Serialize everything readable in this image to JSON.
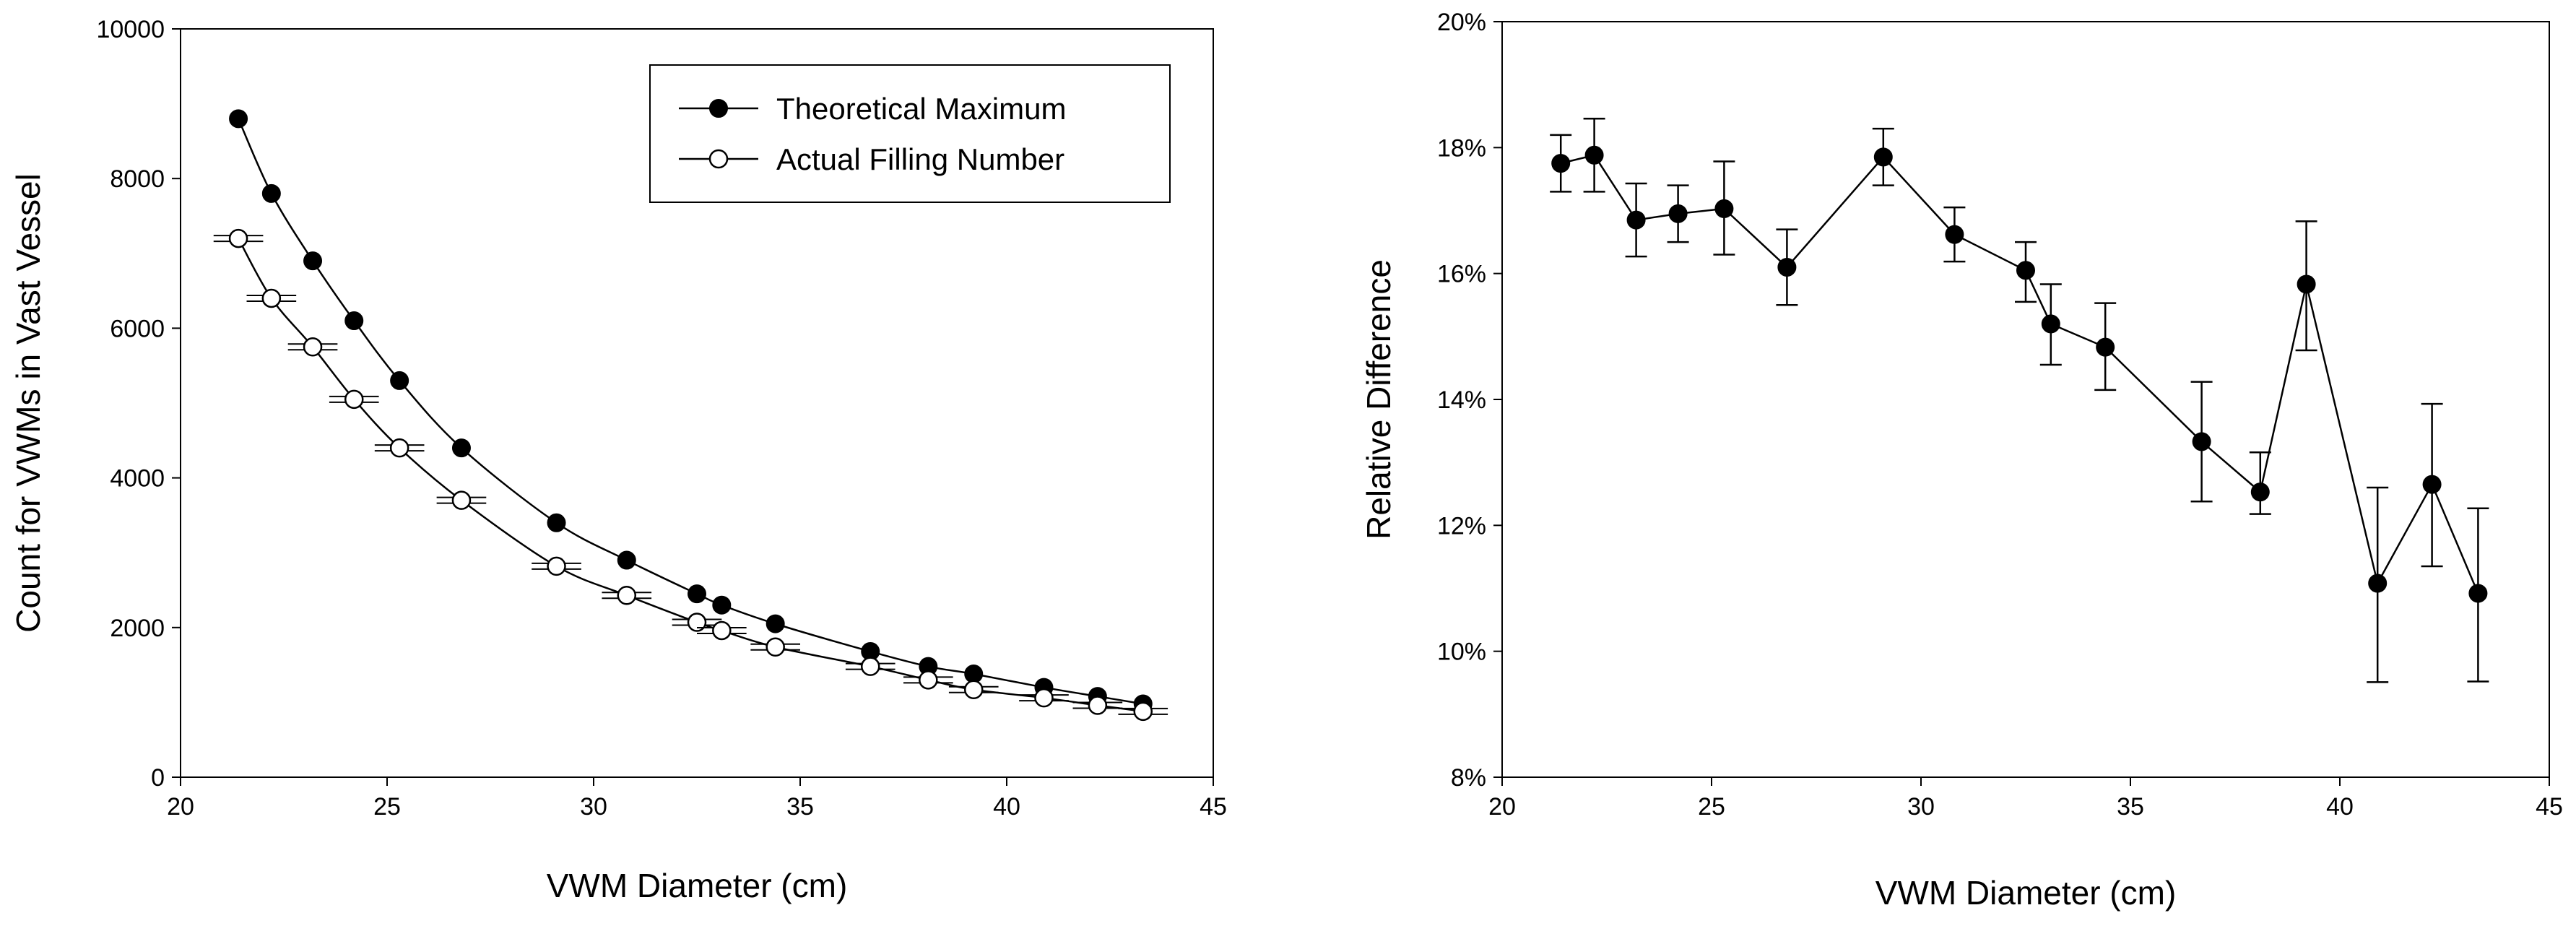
{
  "chart_data": [
    {
      "type": "scatter",
      "xlabel": "VWM Diameter  (cm)",
      "ylabel": "Count for VWMs in Vast Vessel",
      "xlim": [
        20,
        45
      ],
      "ylim": [
        0,
        10000
      ],
      "xticks": [
        20,
        25,
        30,
        35,
        40,
        45
      ],
      "yticks": [
        0,
        2000,
        4000,
        6000,
        8000,
        10000
      ],
      "xtick_labels": [
        "20",
        "25",
        "30",
        "35",
        "40",
        "45"
      ],
      "ytick_labels": [
        "0",
        "2000",
        "4000",
        "6000",
        "8000",
        "10000"
      ],
      "legend_position": "top-right",
      "series": [
        {
          "name": "Theoretical Maximum",
          "marker": "filled-circle",
          "x": [
            21.4,
            22.2,
            23.2,
            24.2,
            25.3,
            26.8,
            29.1,
            30.8,
            32.5,
            33.1,
            34.4,
            36.7,
            38.1,
            39.2,
            40.9,
            42.2,
            43.3
          ],
          "y": [
            8800,
            7800,
            6900,
            6100,
            5300,
            4400,
            3400,
            2900,
            2450,
            2300,
            2050,
            1680,
            1480,
            1380,
            1200,
            1080,
            980
          ]
        },
        {
          "name": "Actual Filling Number",
          "marker": "open-circle",
          "x": [
            21.4,
            22.2,
            23.2,
            24.2,
            25.3,
            26.8,
            29.1,
            30.8,
            32.5,
            33.1,
            34.4,
            36.7,
            38.1,
            39.2,
            40.9,
            42.2,
            43.3
          ],
          "y": [
            7200,
            6400,
            5750,
            5050,
            4400,
            3700,
            2820,
            2430,
            2070,
            1960,
            1740,
            1480,
            1300,
            1170,
            1060,
            960,
            880
          ],
          "xerr": [
            0.6,
            0.6,
            0.6,
            0.6,
            0.6,
            0.6,
            0.6,
            0.6,
            0.6,
            0.6,
            0.6,
            0.6,
            0.6,
            0.6,
            0.6,
            0.6,
            0.6
          ]
        }
      ]
    },
    {
      "type": "line",
      "xlabel": "VWM Diameter  (cm)",
      "ylabel": "Relative Difference",
      "xlim": [
        20,
        45
      ],
      "ylim": [
        0.08,
        0.2
      ],
      "xticks": [
        20,
        25,
        30,
        35,
        40,
        45
      ],
      "yticks": [
        0.08,
        0.1,
        0.12,
        0.14,
        0.16,
        0.18,
        0.2
      ],
      "xtick_labels": [
        "20",
        "25",
        "30",
        "35",
        "40",
        "45"
      ],
      "ytick_labels": [
        "8%",
        "10%",
        "12%",
        "14%",
        "16%",
        "18%",
        "20%"
      ],
      "series": [
        {
          "name": "Relative Difference",
          "marker": "filled-circle",
          "x": [
            21.4,
            22.2,
            23.2,
            24.2,
            25.3,
            26.8,
            29.1,
            30.8,
            32.5,
            33.1,
            34.4,
            36.7,
            38.1,
            39.2,
            40.9,
            42.2,
            43.3
          ],
          "y": [
            0.1775,
            0.1788,
            0.1685,
            0.1695,
            0.1703,
            0.161,
            0.1785,
            0.1662,
            0.1605,
            0.152,
            0.1483,
            0.1333,
            0.1253,
            0.1583,
            0.1108,
            0.1265,
            0.1092
          ],
          "err_low": [
            0.0045,
            0.0058,
            0.0058,
            0.0045,
            0.0073,
            0.006,
            0.0045,
            0.0043,
            0.005,
            0.0065,
            0.0068,
            0.0095,
            0.0035,
            0.0105,
            0.0157,
            0.013,
            0.014
          ],
          "err_high": [
            0.0045,
            0.0058,
            0.0058,
            0.0045,
            0.0075,
            0.006,
            0.0045,
            0.0043,
            0.0045,
            0.0063,
            0.007,
            0.0095,
            0.0063,
            0.01,
            0.0152,
            0.0128,
            0.0135
          ]
        }
      ]
    }
  ]
}
